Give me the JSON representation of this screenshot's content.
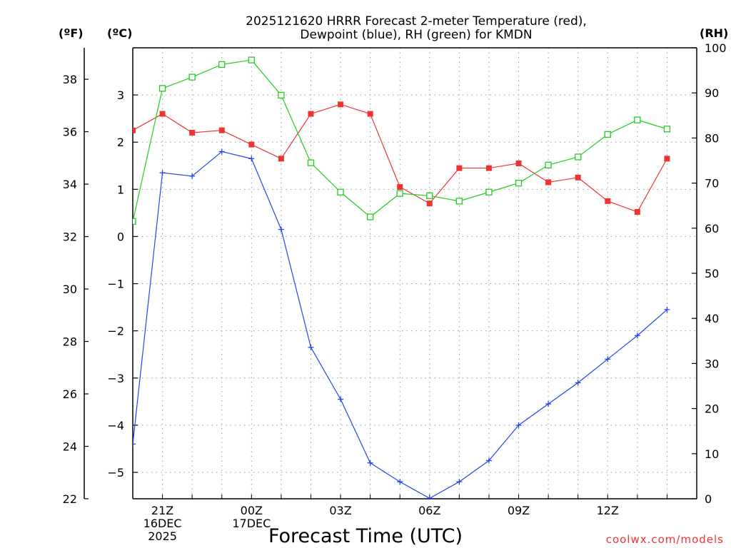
{
  "chart_data": {
    "type": "line",
    "title_line1": "2025121620 HRRR Forecast 2-meter Temperature (red),",
    "title_line2": "Dewpoint (blue), RH (green) for KMDN",
    "xlabel": "Forecast Time (UTC)",
    "watermark": "coolwx.com/models",
    "units": {
      "fahrenheit": "(ºF)",
      "celsius": "(ºC)",
      "rh": "(RH)"
    },
    "x_hours": [
      -1,
      0,
      1,
      2,
      3,
      4,
      5,
      6,
      7,
      8,
      9,
      10,
      11,
      12,
      13,
      14,
      15,
      16,
      17,
      18
    ],
    "x_tick_labels": [
      {
        "hour": 0,
        "lines": [
          "21Z",
          "16DEC",
          "2025"
        ]
      },
      {
        "hour": 3,
        "lines": [
          "00Z",
          "17DEC"
        ]
      },
      {
        "hour": 6,
        "lines": [
          "03Z"
        ]
      },
      {
        "hour": 9,
        "lines": [
          "06Z"
        ]
      },
      {
        "hour": 12,
        "lines": [
          "09Z"
        ]
      },
      {
        "hour": 15,
        "lines": [
          "12Z"
        ]
      }
    ],
    "fahrenheit_axis": {
      "range": [
        22,
        39.2
      ],
      "ticks": [
        22,
        24,
        26,
        28,
        30,
        32,
        34,
        36,
        38
      ]
    },
    "celsius_axis": {
      "range": [
        -5.56,
        4
      ],
      "ticks": [
        -5,
        -4,
        -3,
        -2,
        -1,
        0,
        1,
        2,
        3
      ]
    },
    "rh_axis": {
      "range": [
        0,
        100
      ],
      "ticks": [
        0,
        10,
        20,
        30,
        40,
        50,
        60,
        70,
        80,
        90,
        100
      ]
    },
    "series": [
      {
        "name": "Temperature",
        "axis": "celsius",
        "color": "#ee3333",
        "marker": "filled-square",
        "values": [
          2.25,
          2.6,
          2.2,
          2.25,
          1.95,
          1.65,
          2.6,
          2.8,
          2.6,
          1.05,
          0.7,
          1.45,
          1.45,
          1.55,
          1.15,
          1.25,
          0.75,
          0.52,
          1.65
        ]
      },
      {
        "name": "Dewpoint",
        "axis": "celsius",
        "color": "#2244ee",
        "marker": "plus",
        "values": [
          -4.4,
          1.35,
          1.28,
          1.8,
          1.65,
          0.15,
          -2.35,
          -3.45,
          -4.8,
          -5.2,
          -5.55,
          -5.2,
          -4.75,
          -4.0,
          -3.55,
          -3.1,
          -2.6,
          -2.1,
          -1.55
        ]
      },
      {
        "name": "RH",
        "axis": "rh",
        "color": "#22cc22",
        "marker": "open-square",
        "values": [
          61.5,
          91,
          93.5,
          96.3,
          97.3,
          89.5,
          74.5,
          68,
          62.5,
          67.7,
          67.2,
          66,
          68,
          70,
          74,
          75.8,
          80.8,
          84,
          82
        ]
      }
    ]
  }
}
